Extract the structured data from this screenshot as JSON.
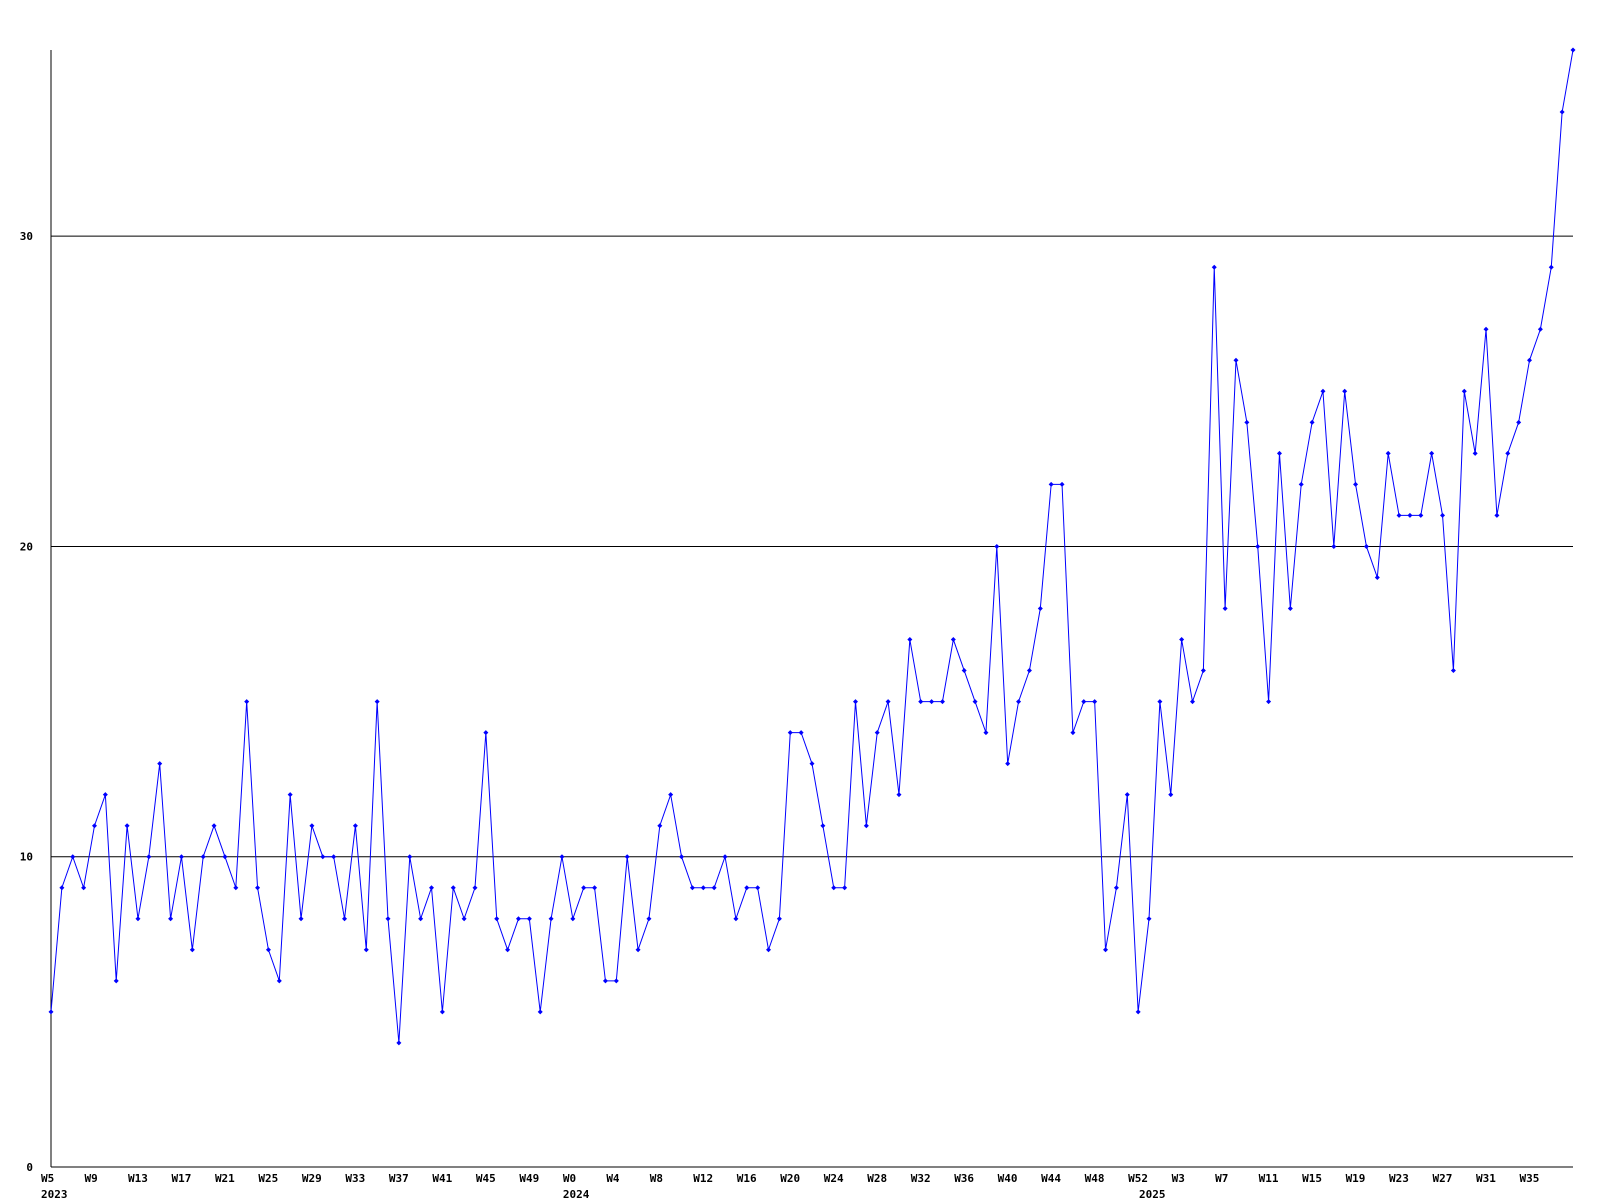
{
  "chart_data": {
    "type": "line",
    "categories": [
      "W5",
      null,
      null,
      null,
      "W9",
      null,
      null,
      null,
      "W13",
      null,
      null,
      null,
      "W17",
      null,
      null,
      null,
      "W21",
      null,
      null,
      null,
      "W25",
      null,
      null,
      null,
      "W29",
      null,
      null,
      null,
      "W33",
      null,
      null,
      null,
      "W37",
      null,
      null,
      null,
      "W41",
      null,
      null,
      null,
      "W45",
      null,
      null,
      null,
      "W49",
      null,
      null,
      null,
      "W0",
      null,
      null,
      null,
      "W4",
      null,
      null,
      null,
      "W8",
      null,
      null,
      null,
      "W12",
      null,
      null,
      null,
      "W16",
      null,
      null,
      null,
      "W20",
      null,
      null,
      null,
      "W24",
      null,
      null,
      null,
      "W28",
      null,
      null,
      null,
      "W32",
      null,
      null,
      null,
      "W36",
      null,
      null,
      null,
      "W40",
      null,
      null,
      null,
      "W44",
      null,
      null,
      null,
      "W48",
      null,
      null,
      null,
      "W52",
      null,
      null,
      null,
      "W3",
      null,
      null,
      null,
      "W7",
      null,
      null,
      null,
      "W11",
      null,
      null,
      null,
      "W15",
      null,
      null,
      null,
      "W19",
      null,
      null,
      null,
      "W23",
      null,
      null,
      null,
      "W27",
      null,
      null,
      null,
      "W31",
      null,
      null,
      null,
      "W35",
      null,
      null,
      null,
      null
    ],
    "year_labels": [
      {
        "category_index": 0,
        "label": "2023"
      },
      {
        "category_index": 48,
        "label": "2024"
      },
      {
        "category_index": 101,
        "label": "2025"
      }
    ],
    "series": [
      {
        "color": "#0000ff",
        "values": [
          5,
          9,
          10,
          9,
          11,
          12,
          6,
          11,
          8,
          10,
          13,
          8,
          10,
          7,
          10,
          11,
          10,
          9,
          15,
          9,
          7,
          6,
          12,
          8,
          11,
          10,
          10,
          8,
          11,
          7,
          15,
          8,
          4,
          10,
          8,
          9,
          5,
          9,
          8,
          9,
          14,
          8,
          7,
          8,
          8,
          5,
          8,
          10,
          8,
          9,
          9,
          6,
          6,
          10,
          7,
          8,
          11,
          12,
          10,
          9,
          9,
          9,
          10,
          8,
          9,
          9,
          7,
          8,
          14,
          14,
          13,
          11,
          9,
          9,
          15,
          11,
          14,
          15,
          12,
          17,
          15,
          15,
          15,
          17,
          16,
          15,
          14,
          20,
          13,
          15,
          16,
          18,
          22,
          22,
          14,
          15,
          15,
          7,
          9,
          12,
          5,
          8,
          15,
          12,
          17,
          15,
          16,
          29,
          18,
          26,
          24,
          20,
          15,
          23,
          18,
          22,
          24,
          25,
          20,
          25,
          22,
          20,
          19,
          23,
          21,
          21,
          21,
          23,
          21,
          16,
          25,
          23,
          27,
          21,
          23,
          24,
          26,
          27,
          29,
          34,
          36
        ]
      }
    ],
    "ylim": [
      0,
      36
    ],
    "yticks": [
      0,
      10,
      20,
      30
    ],
    "grid": true
  }
}
